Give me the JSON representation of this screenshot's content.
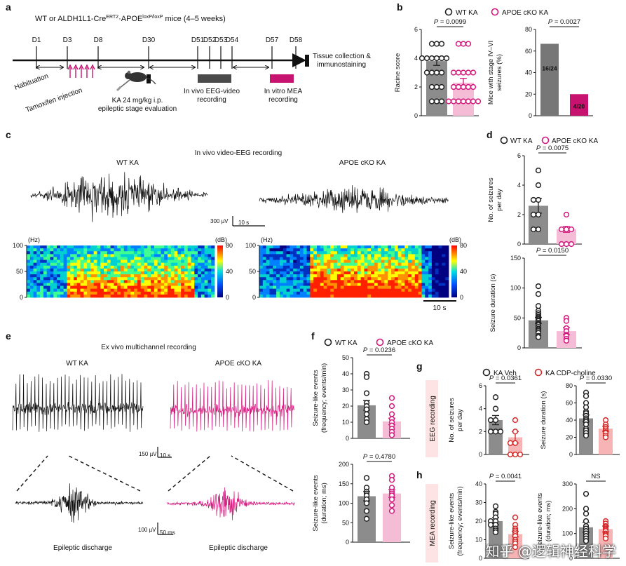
{
  "watermark": "知乎 @逻辑神经科学",
  "colors": {
    "wt": "#222222",
    "cko": "#d4177c",
    "veh": "#222222",
    "cdp": "#d42a2a",
    "wtBar": "#8c8c8c",
    "ckoBar": "#f5bcd6",
    "cdpBar": "#f7b4b4",
    "ckoSolid": "#c8126f",
    "mea": "#c8126f"
  },
  "a": {
    "label": "a",
    "title_pre": "WT or ALDH1L1-Cre",
    "title_sup1": "ERT2",
    "title_mid": "·APOE",
    "title_sup2": "loxP/loxP",
    "title_post": " mice (4–5 weeks)",
    "days": [
      "D1",
      "D3",
      "D8",
      "D30",
      "D51",
      "D52",
      "D53",
      "D54",
      "D57",
      "D58"
    ],
    "habituation": "Habituation",
    "tamoxifen": "Tamoxifen injection",
    "ka1": "KA 24 mg/kg i.p.",
    "ka2": "epileptic stage evaluation",
    "eeg1": "In vivo EEG-video",
    "eeg2": "recording",
    "mea1": "In vitro MEA",
    "mea2": "recording",
    "tissue1": "Tissue collection &",
    "tissue2": "immunostaining"
  },
  "b": {
    "label": "b",
    "legend": [
      "WT KA",
      "APOE cKO KA"
    ],
    "racine": {
      "ylabel": "Racine score",
      "p": "P = 0.0099",
      "yticks": [
        "0",
        "2",
        "4",
        "6"
      ],
      "ymax": 6,
      "chart_data": {
        "type": "bar",
        "categories": [
          "WT KA",
          "APOE cKO KA"
        ],
        "values": [
          3.8,
          2.3
        ],
        "sem": [
          0.3,
          0.3
        ],
        "ylim": [
          0,
          6
        ],
        "points": [
          [
            5,
            5,
            5,
            4,
            4,
            4,
            4,
            4,
            4,
            3,
            3,
            3,
            3,
            2,
            2,
            2,
            1,
            1,
            1
          ],
          [
            5,
            5,
            5,
            3,
            3,
            3,
            3,
            3,
            2,
            2,
            2,
            2,
            2,
            1,
            1,
            1,
            1,
            1,
            1,
            1
          ]
        ]
      }
    },
    "stage": {
      "ylabel1": "Mice with stage IV–VI",
      "ylabel2": "seizures (%)",
      "p": "P = 0.0027",
      "yticks": [
        "0",
        "20",
        "40",
        "60",
        "80"
      ],
      "ymax": 80,
      "chart_data": {
        "type": "bar",
        "categories": [
          "WT KA",
          "APOE cKO KA"
        ],
        "values": [
          66.7,
          20
        ],
        "ylim": [
          0,
          80
        ]
      },
      "bar_labels": [
        "16/24",
        "4/20"
      ]
    }
  },
  "c": {
    "label": "c",
    "title": "In vivo video-EEG recording",
    "wt": "WT KA",
    "cko": "APOE cKO KA",
    "scale_uv": "300 µV",
    "scale_s": "10 s",
    "hz": "(Hz)",
    "db": "(dB)",
    "yticks": [
      "100",
      "50",
      "0"
    ],
    "cticks": [
      "80",
      "40",
      "0"
    ],
    "time_scale": "10 s"
  },
  "d": {
    "label": "d",
    "legend": [
      "WT KA",
      "APOE cKO KA"
    ],
    "num": {
      "ylabel1": "No. of seizures",
      "ylabel2": "per day",
      "p": "P = 0.0075",
      "yticks": [
        "0",
        "2",
        "4",
        "6"
      ],
      "ymax": 6,
      "chart_data": {
        "type": "bar",
        "categories": [
          "WT KA",
          "APOE cKO KA"
        ],
        "values": [
          2.6,
          1.0
        ],
        "sem": [
          0.5,
          0.2
        ],
        "ylim": [
          0,
          6
        ],
        "points": [
          [
            5,
            4,
            3,
            3,
            2,
            2,
            1,
            1
          ],
          [
            2,
            1,
            1,
            1,
            0,
            0,
            0
          ]
        ]
      }
    },
    "dur": {
      "ylabel": "Seizure duration (s)",
      "p": "P = 0.0150",
      "yticks": [
        "0",
        "50",
        "100",
        "150"
      ],
      "ymax": 150,
      "chart_data": {
        "type": "bar",
        "categories": [
          "WT KA",
          "APOE cKO KA"
        ],
        "values": [
          46,
          28
        ],
        "sem": [
          5,
          6
        ],
        "ylim": [
          0,
          150
        ],
        "points": [
          [
            103,
            90,
            70,
            62,
            58,
            55,
            52,
            50,
            48,
            46,
            45,
            42,
            40,
            38,
            35,
            32,
            30,
            28,
            25,
            20,
            18
          ],
          [
            50,
            45,
            33,
            28,
            22,
            20,
            15,
            12
          ]
        ]
      }
    }
  },
  "e": {
    "label": "e",
    "title": "Ex vivo multichannel recording",
    "wt": "WT KA",
    "cko": "APOE cKO KA",
    "scale1_uv": "150 µV",
    "scale1_t": "10 s",
    "scale2_uv": "100 µV",
    "scale2_t": "50 ms",
    "discharge": "Epileptic discharge"
  },
  "f": {
    "label": "f",
    "legend": [
      "WT KA",
      "APOE cKO KA"
    ],
    "freq": {
      "ylabel1": "Seizure-like events",
      "ylabel2": "(frequency; events/min)",
      "p": "P = 0.0236",
      "yticks": [
        "0",
        "10",
        "20",
        "30",
        "40",
        "50"
      ],
      "ymax": 50,
      "chart_data": {
        "type": "bar",
        "categories": [
          "WT KA",
          "APOE cKO KA"
        ],
        "values": [
          20.5,
          10.5
        ],
        "sem": [
          3,
          2
        ],
        "ylim": [
          0,
          50
        ],
        "points": [
          [
            40,
            38,
            28,
            22,
            20,
            18,
            15,
            12,
            10
          ],
          [
            25,
            20,
            15,
            12,
            10,
            8,
            6,
            4,
            2
          ]
        ]
      }
    },
    "dur": {
      "ylabel1": "Seizure-like events",
      "ylabel2": "(duration; ms)",
      "p": "P = 0.4780",
      "yticks": [
        "0",
        "50",
        "100",
        "150",
        "200"
      ],
      "ymax": 200,
      "chart_data": {
        "type": "bar",
        "categories": [
          "WT KA",
          "APOE cKO KA"
        ],
        "values": [
          118,
          125
        ],
        "sem": [
          12,
          10
        ],
        "ylim": [
          0,
          200
        ],
        "points": [
          [
            165,
            140,
            130,
            125,
            120,
            110,
            100,
            80,
            60
          ],
          [
            170,
            160,
            140,
            130,
            125,
            120,
            110,
            95,
            80
          ]
        ]
      }
    }
  },
  "g": {
    "label": "g",
    "legend": [
      "KA Veh",
      "KA CDP-choline"
    ],
    "side": "EEG recording",
    "num": {
      "ylabel1": "No. of seizures",
      "ylabel2": "per day",
      "p": "P = 0.0361",
      "yticks": [
        "0",
        "2",
        "4",
        "6"
      ],
      "ymax": 6,
      "chart_data": {
        "type": "bar",
        "categories": [
          "KA Veh",
          "KA CDP-choline"
        ],
        "values": [
          3.0,
          1.5
        ],
        "sem": [
          0.4,
          0.5
        ],
        "ylim": [
          0,
          6
        ],
        "points": [
          [
            5,
            4,
            3,
            3,
            2,
            2,
            2
          ],
          [
            3,
            2,
            1,
            1,
            0,
            0,
            0
          ]
        ]
      }
    },
    "dur": {
      "ylabel": "Seizure duration (s)",
      "p": "P = 0.0330",
      "yticks": [
        "0",
        "20",
        "40",
        "60",
        "80"
      ],
      "ymax": 80,
      "chart_data": {
        "type": "bar",
        "categories": [
          "KA Veh",
          "KA CDP-choline"
        ],
        "values": [
          42,
          30
        ],
        "sem": [
          4,
          3
        ],
        "ylim": [
          0,
          80
        ],
        "points": [
          [
            72,
            68,
            60,
            55,
            50,
            48,
            45,
            42,
            40,
            38,
            35,
            30,
            28,
            25,
            22
          ],
          [
            40,
            35,
            32,
            30,
            28,
            26,
            25,
            22,
            20
          ]
        ]
      }
    }
  },
  "h": {
    "label": "h",
    "side": "MEA recording",
    "freq": {
      "ylabel1": "Seizure-like events",
      "ylabel2": "(frequency; events/min)",
      "p": "P = 0.0041",
      "yticks": [
        "0",
        "10",
        "20",
        "30",
        "40"
      ],
      "ymax": 40,
      "chart_data": {
        "type": "bar",
        "categories": [
          "KA Veh",
          "KA CDP-choline"
        ],
        "values": [
          20,
          13
        ],
        "sem": [
          2,
          1.5
        ],
        "ylim": [
          0,
          40
        ],
        "points": [
          [
            28,
            25,
            24,
            22,
            20,
            20,
            18,
            18,
            16,
            15,
            14
          ],
          [
            22,
            18,
            16,
            15,
            14,
            13,
            12,
            10,
            9,
            8,
            6
          ]
        ]
      }
    },
    "dur": {
      "ylabel1": "Seizure-like events",
      "ylabel2": "(duration; ms)",
      "p": "NS",
      "yticks": [
        "0",
        "100",
        "200",
        "300"
      ],
      "ymax": 300,
      "chart_data": {
        "type": "bar",
        "categories": [
          "KA Veh",
          "KA CDP-choline"
        ],
        "values": [
          125,
          118
        ],
        "sem": [
          20,
          12
        ],
        "ylim": [
          0,
          300
        ],
        "points": [
          [
            260,
            200,
            180,
            150,
            130,
            120,
            110,
            100,
            90,
            80,
            70
          ],
          [
            150,
            140,
            130,
            125,
            120,
            115,
            110,
            100,
            95,
            90,
            80
          ]
        ]
      }
    }
  }
}
